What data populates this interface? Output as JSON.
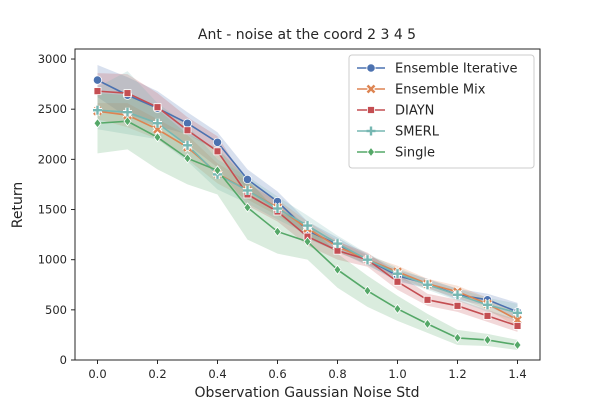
{
  "chart_data": {
    "type": "line",
    "title": "Ant - noise at the coord 2 3 4 5",
    "xlabel": "Observation Gaussian Noise Std",
    "ylabel": "Return",
    "xlim": [
      -0.075,
      1.475
    ],
    "ylim": [
      0,
      3100
    ],
    "xticks": [
      0.0,
      0.2,
      0.4,
      0.6,
      0.8,
      1.0,
      1.2,
      1.4
    ],
    "xtick_labels": [
      "0.0",
      "0.2",
      "0.4",
      "0.6",
      "0.8",
      "1.0",
      "1.2",
      "1.4"
    ],
    "yticks": [
      0,
      500,
      1000,
      1500,
      2000,
      2500,
      3000
    ],
    "ytick_labels": [
      "0",
      "500",
      "1000",
      "1500",
      "2000",
      "2500",
      "3000"
    ],
    "grid": false,
    "legend_position": "top-right",
    "series": [
      {
        "name": "Ensemble Iterative",
        "color": "#4c72b0",
        "marker": "circle",
        "x": [
          0.0,
          0.1,
          0.2,
          0.3,
          0.4,
          0.5,
          0.6,
          0.7,
          0.8,
          0.9,
          1.0,
          1.1,
          1.2,
          1.3,
          1.4
        ],
        "y": [
          2790,
          2640,
          2510,
          2360,
          2170,
          1800,
          1580,
          1290,
          1150,
          1000,
          840,
          760,
          650,
          600,
          480
        ],
        "lower": [
          2620,
          2420,
          2330,
          2250,
          2080,
          1690,
          1480,
          1210,
          1080,
          950,
          780,
          720,
          600,
          540,
          400
        ],
        "upper": [
          2940,
          2820,
          2680,
          2470,
          2270,
          1900,
          1680,
          1380,
          1220,
          1050,
          900,
          810,
          710,
          660,
          570
        ]
      },
      {
        "name": "Ensemble Mix",
        "color": "#dd8452",
        "marker": "x",
        "x": [
          0.0,
          0.1,
          0.2,
          0.3,
          0.4,
          0.5,
          0.6,
          0.7,
          0.8,
          0.9,
          1.0,
          1.1,
          1.2,
          1.3,
          1.4
        ],
        "y": [
          2480,
          2440,
          2300,
          2120,
          1860,
          1690,
          1520,
          1310,
          1130,
          1000,
          880,
          760,
          680,
          560,
          400
        ],
        "lower": [
          2400,
          2320,
          2200,
          2000,
          1760,
          1600,
          1440,
          1240,
          1070,
          960,
          820,
          710,
          620,
          500,
          330
        ],
        "upper": [
          2560,
          2560,
          2400,
          2240,
          1960,
          1780,
          1600,
          1380,
          1190,
          1040,
          940,
          810,
          740,
          620,
          470
        ]
      },
      {
        "name": "DIAYN",
        "color": "#c44e52",
        "marker": "square",
        "x": [
          0.0,
          0.1,
          0.2,
          0.3,
          0.4,
          0.5,
          0.6,
          0.7,
          0.8,
          0.9,
          1.0,
          1.1,
          1.2,
          1.3,
          1.4
        ],
        "y": [
          2680,
          2660,
          2520,
          2290,
          2080,
          1650,
          1480,
          1230,
          1090,
          1000,
          780,
          600,
          540,
          440,
          340
        ],
        "lower": [
          2470,
          2450,
          2360,
          2150,
          1920,
          1540,
          1380,
          1140,
          1000,
          930,
          700,
          540,
          480,
          380,
          280
        ],
        "upper": [
          2860,
          2850,
          2660,
          2420,
          2230,
          1760,
          1580,
          1330,
          1180,
          1070,
          860,
          660,
          600,
          500,
          400
        ]
      },
      {
        "name": "SMERL",
        "color": "#76b7b2",
        "marker": "plus",
        "x": [
          0.0,
          0.1,
          0.2,
          0.3,
          0.4,
          0.5,
          0.6,
          0.7,
          0.8,
          0.9,
          1.0,
          1.1,
          1.2,
          1.3,
          1.4
        ],
        "y": [
          2490,
          2470,
          2360,
          2140,
          1850,
          1690,
          1510,
          1340,
          1160,
          1000,
          860,
          750,
          650,
          550,
          470
        ],
        "lower": [
          2300,
          2250,
          2200,
          1980,
          1700,
          1560,
          1400,
          1250,
          1080,
          940,
          800,
          700,
          590,
          480,
          390
        ],
        "upper": [
          2720,
          2880,
          2560,
          2340,
          2000,
          1830,
          1630,
          1440,
          1240,
          1060,
          920,
          800,
          710,
          620,
          560
        ]
      },
      {
        "name": "Single",
        "color": "#55a868",
        "marker": "diamond",
        "x": [
          0.0,
          0.1,
          0.2,
          0.3,
          0.4,
          0.5,
          0.6,
          0.7,
          0.8,
          0.9,
          1.0,
          1.1,
          1.2,
          1.3,
          1.4
        ],
        "y": [
          2360,
          2380,
          2220,
          2010,
          1890,
          1520,
          1280,
          1180,
          900,
          690,
          510,
          360,
          220,
          200,
          150
        ],
        "lower": [
          2060,
          2100,
          1900,
          1750,
          1650,
          1200,
          1060,
          1000,
          720,
          530,
          390,
          270,
          150,
          140,
          100
        ],
        "upper": [
          2660,
          2640,
          2500,
          2250,
          2110,
          1800,
          1480,
          1360,
          1060,
          840,
          640,
          460,
          300,
          260,
          200
        ]
      }
    ]
  }
}
